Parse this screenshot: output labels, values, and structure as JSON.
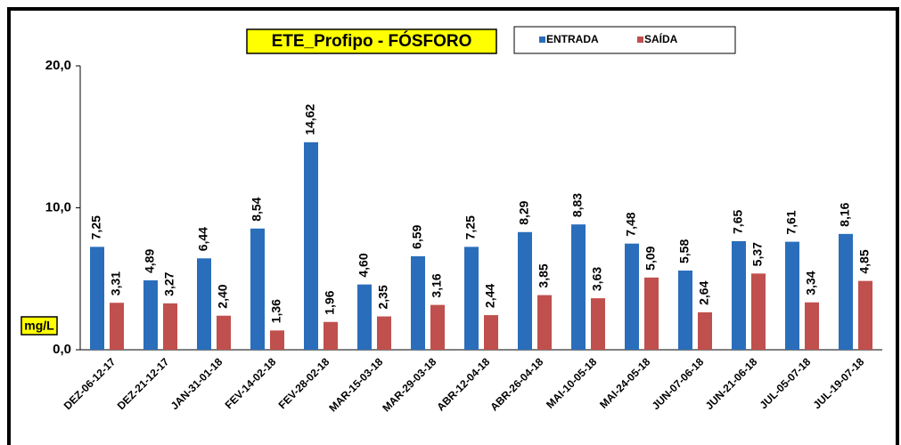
{
  "chart_data": {
    "type": "bar",
    "title": "ETE_Profipo - FÓSFORO",
    "y_label": "mg/L",
    "categories": [
      "DEZ-06-12-17",
      "DEZ-21-12-17",
      "JAN-31-01-18",
      "FEV-14-02-18",
      "FEV-28-02-18",
      "MAR-15-03-18",
      "MAR-29-03-18",
      "ABR-12-04-18",
      "ABR-26-04-18",
      "MAI-10-05-18",
      "MAI-24-05-18",
      "JUN-07-06-18",
      "JUN-21-06-18",
      "JUL-05-07-18",
      "JUL-19-07-18"
    ],
    "series": [
      {
        "name": "ENTRADA",
        "color": "#2a6ebb",
        "values": [
          7.25,
          4.89,
          6.44,
          8.54,
          14.62,
          4.6,
          6.59,
          7.25,
          8.29,
          8.83,
          7.48,
          5.58,
          7.65,
          7.61,
          8.16
        ],
        "value_labels": [
          "7,25",
          "4,89",
          "6,44",
          "8,54",
          "14,62",
          "4,60",
          "6,59",
          "7,25",
          "8,29",
          "8,83",
          "7,48",
          "5,58",
          "7,65",
          "7,61",
          "8,16"
        ]
      },
      {
        "name": "SAÍDA",
        "color": "#c0504d",
        "values": [
          3.31,
          3.27,
          2.4,
          1.36,
          1.96,
          2.35,
          3.16,
          2.44,
          3.85,
          3.63,
          5.09,
          2.64,
          5.37,
          3.34,
          4.85
        ],
        "value_labels": [
          "3,31",
          "3,27",
          "2,40",
          "1,36",
          "1,96",
          "2,35",
          "3,16",
          "2,44",
          "3,85",
          "3,63",
          "5,09",
          "2,64",
          "5,37",
          "3,34",
          "4,85"
        ]
      }
    ],
    "ylim": [
      0,
      20
    ],
    "yticks": [
      {
        "value": 0,
        "label": "0,0"
      },
      {
        "value": 10,
        "label": "10,0"
      },
      {
        "value": 20,
        "label": "20,0"
      }
    ],
    "grid": false
  }
}
